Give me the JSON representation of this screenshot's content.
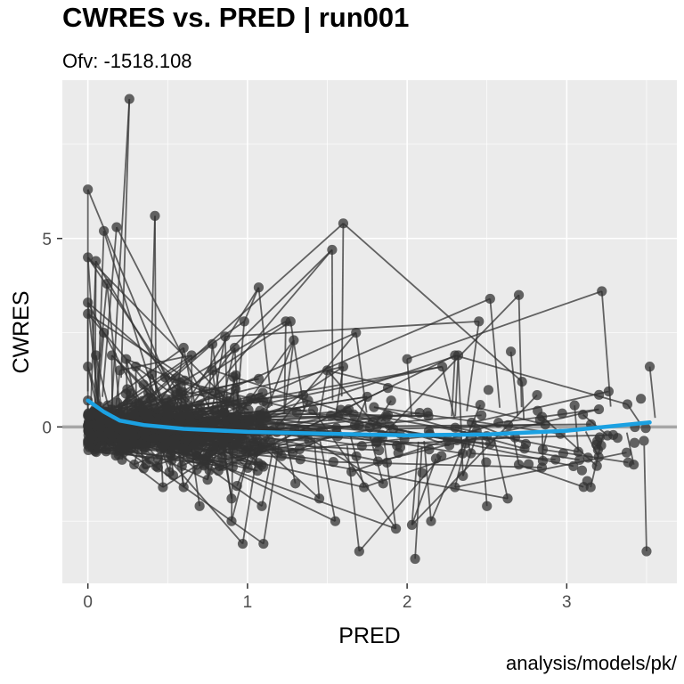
{
  "chart_data": {
    "type": "scatter",
    "title": "CWRES vs. PRED | run001",
    "subtitle": "Ofv: -1518.108",
    "xlabel": "PRED",
    "ylabel": "CWRES",
    "caption": "analysis/models/pk/",
    "xlim": [
      -0.16,
      3.69
    ],
    "ylim": [
      -4.15,
      9.2
    ],
    "x_ticks": [
      0,
      1,
      2,
      3
    ],
    "y_ticks": [
      0,
      5
    ],
    "grid": true,
    "legend": "none",
    "colors": {
      "panel_background": "#ebebeb",
      "grid_major": "#ffffff",
      "points": "#333333",
      "lines": "#333333",
      "reference_line": "#a6a6a6",
      "smooth": "#1ba1e2"
    },
    "reference_line_y": 0,
    "series": [
      {
        "values": [
          {
            "x": 0.0,
            "y": 6.3
          },
          {
            "x": 0.0,
            "y": 4.5
          },
          {
            "x": 0.0,
            "y": 3.3
          },
          {
            "x": 0.0,
            "y": 3.0
          },
          {
            "x": 0.0,
            "y": 1.6
          },
          {
            "x": 0.0,
            "y": 0.7
          },
          {
            "x": 0.0,
            "y": 0.3
          },
          {
            "x": 0.05,
            "y": 4.4
          },
          {
            "x": 0.05,
            "y": 1.9
          },
          {
            "x": 0.1,
            "y": 5.2
          },
          {
            "x": 0.12,
            "y": 3.8
          },
          {
            "x": 0.1,
            "y": 2.5
          },
          {
            "x": 0.15,
            "y": 1.9
          },
          {
            "x": 0.18,
            "y": 5.3
          },
          {
            "x": 0.2,
            "y": 1.5
          },
          {
            "x": 0.26,
            "y": 8.7
          },
          {
            "x": 0.24,
            "y": 1.8
          },
          {
            "x": 0.3,
            "y": 1.6
          },
          {
            "x": 0.42,
            "y": 5.6
          },
          {
            "x": 0.4,
            "y": 1.4
          },
          {
            "x": 0.6,
            "y": 2.1
          },
          {
            "x": 0.65,
            "y": 1.9
          },
          {
            "x": 0.78,
            "y": 2.2
          },
          {
            "x": 0.86,
            "y": 2.4
          },
          {
            "x": 0.92,
            "y": 2.1
          },
          {
            "x": 0.98,
            "y": 2.8
          },
          {
            "x": 1.07,
            "y": 3.7
          },
          {
            "x": 1.24,
            "y": 2.8
          },
          {
            "x": 1.27,
            "y": 2.8
          },
          {
            "x": 1.29,
            "y": 2.3
          },
          {
            "x": 1.38,
            "y": 0.7
          },
          {
            "x": 1.5,
            "y": 1.5
          },
          {
            "x": 1.53,
            "y": 4.7
          },
          {
            "x": 1.6,
            "y": 5.4
          },
          {
            "x": 1.6,
            "y": 1.6
          },
          {
            "x": 1.68,
            "y": 2.5
          },
          {
            "x": 1.75,
            "y": 0.8
          },
          {
            "x": 2.0,
            "y": 1.8
          },
          {
            "x": 1.9,
            "y": 0.7
          },
          {
            "x": 2.22,
            "y": 1.6
          },
          {
            "x": 2.3,
            "y": 1.9
          },
          {
            "x": 2.32,
            "y": 1.9
          },
          {
            "x": 2.45,
            "y": 2.8
          },
          {
            "x": 2.52,
            "y": 3.4
          },
          {
            "x": 2.7,
            "y": 3.5
          },
          {
            "x": 2.72,
            "y": 1.2
          },
          {
            "x": 2.65,
            "y": 2.0
          },
          {
            "x": 3.22,
            "y": 3.6
          },
          {
            "x": 3.52,
            "y": 1.6
          },
          {
            "x": 3.38,
            "y": 0.6
          },
          {
            "x": 3.15,
            "y": -1.6
          },
          {
            "x": 3.5,
            "y": -3.3
          },
          {
            "x": 3.42,
            "y": -1.0
          },
          {
            "x": 3.2,
            "y": -0.8
          },
          {
            "x": 2.85,
            "y": -0.9
          },
          {
            "x": 2.85,
            "y": -0.6
          },
          {
            "x": 2.7,
            "y": -1.0
          },
          {
            "x": 2.63,
            "y": -1.9
          },
          {
            "x": 2.5,
            "y": -2.1
          },
          {
            "x": 2.4,
            "y": -0.7
          },
          {
            "x": 2.35,
            "y": -1.3
          },
          {
            "x": 2.3,
            "y": -1.6
          },
          {
            "x": 2.15,
            "y": -2.5
          },
          {
            "x": 2.03,
            "y": -2.6
          },
          {
            "x": 2.05,
            "y": -3.5
          },
          {
            "x": 1.93,
            "y": -2.7
          },
          {
            "x": 1.7,
            "y": -3.3
          },
          {
            "x": 1.73,
            "y": -1.6
          },
          {
            "x": 1.55,
            "y": -2.5
          },
          {
            "x": 1.1,
            "y": -3.1
          },
          {
            "x": 0.97,
            "y": -3.1
          },
          {
            "x": 0.9,
            "y": -2.5
          },
          {
            "x": 0.7,
            "y": -2.1
          },
          {
            "x": 1.09,
            "y": -2.1
          },
          {
            "x": 1.45,
            "y": -1.9
          },
          {
            "x": 1.3,
            "y": -1.5
          },
          {
            "x": 1.85,
            "y": -1.5
          },
          {
            "x": 0.47,
            "y": -1.6
          },
          {
            "x": 0.35,
            "y": -1.1
          },
          {
            "x": 0.6,
            "y": -1.6
          },
          {
            "x": 0.75,
            "y": -1.4
          },
          {
            "x": 0.9,
            "y": -1.9
          }
        ]
      }
    ],
    "smooth": [
      {
        "x": 0.0,
        "y": 0.7
      },
      {
        "x": 0.1,
        "y": 0.4
      },
      {
        "x": 0.2,
        "y": 0.17
      },
      {
        "x": 0.35,
        "y": 0.05
      },
      {
        "x": 0.6,
        "y": -0.05
      },
      {
        "x": 1.0,
        "y": -0.13
      },
      {
        "x": 1.5,
        "y": -0.18
      },
      {
        "x": 2.0,
        "y": -0.22
      },
      {
        "x": 2.5,
        "y": -0.2
      },
      {
        "x": 3.0,
        "y": -0.1
      },
      {
        "x": 3.52,
        "y": 0.12
      }
    ]
  }
}
